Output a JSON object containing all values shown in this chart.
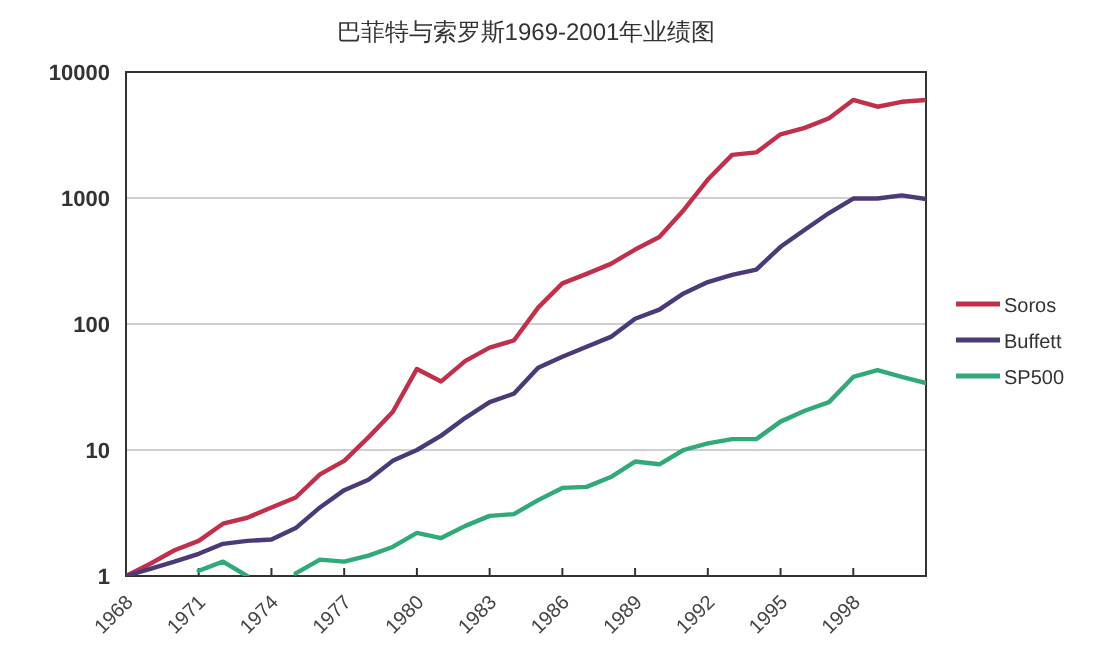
{
  "chart_data": {
    "type": "line",
    "title": "巴菲特与索罗斯1969-2001年业绩图",
    "log": true,
    "grid": "y",
    "legend": "right",
    "x": [
      1968,
      1969,
      1970,
      1971,
      1972,
      1973,
      1974,
      1975,
      1976,
      1977,
      1978,
      1979,
      1980,
      1981,
      1982,
      1983,
      1984,
      1985,
      1986,
      1987,
      1988,
      1989,
      1990,
      1991,
      1992,
      1993,
      1994,
      1995,
      1996,
      1997,
      1998,
      1999,
      2000,
      2001
    ],
    "xlim": [
      1968,
      2001
    ],
    "xticks": [
      1968,
      1971,
      1974,
      1977,
      1980,
      1983,
      1986,
      1989,
      1992,
      1995,
      1998
    ],
    "ylim": [
      1,
      10000
    ],
    "yticks": [
      1,
      10,
      100,
      1000,
      10000
    ],
    "series": [
      {
        "name": "Soros",
        "color": "#c0304a",
        "values": [
          1,
          1.25,
          1.6,
          1.9,
          2.6,
          2.9,
          3.5,
          4.2,
          6.4,
          8.2,
          12.6,
          20,
          44,
          35,
          51,
          65,
          74,
          135,
          210,
          250,
          300,
          390,
          490,
          800,
          1400,
          2200,
          2300,
          3200,
          3600,
          4300,
          6000,
          5300,
          5800,
          6000
        ]
      },
      {
        "name": "Buffett",
        "color": "#4b3a78",
        "values": [
          1,
          1.14,
          1.3,
          1.5,
          1.8,
          1.9,
          1.95,
          2.4,
          3.5,
          4.8,
          5.8,
          8.2,
          10,
          13,
          18,
          24,
          28,
          45,
          55,
          66,
          79,
          110,
          130,
          175,
          215,
          245,
          270,
          410,
          560,
          760,
          990,
          990,
          1050,
          980
        ]
      },
      {
        "name": "SP500",
        "color": "#2faa78",
        "values": [
          null,
          null,
          null,
          1.1,
          1.3,
          1,
          null,
          1.05,
          1.35,
          1.3,
          1.45,
          1.7,
          2.2,
          2,
          2.5,
          3,
          3.1,
          4,
          5,
          5.1,
          6.1,
          8.1,
          7.7,
          10,
          11.3,
          12.2,
          12.2,
          16.8,
          20.5,
          24,
          38,
          43,
          38,
          34
        ]
      }
    ]
  }
}
